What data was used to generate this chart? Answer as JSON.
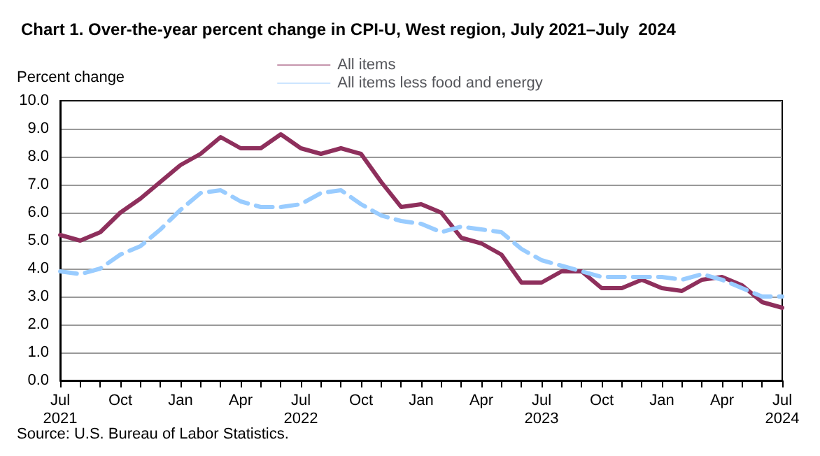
{
  "chart_data": {
    "type": "line",
    "title": "Chart 1. Over-the-year percent change in CPI-U, West region, July 2021–July  2024",
    "ylabel": "Percent change",
    "annotations": [
      "Source: U.S. Bureau of Labor Statistics."
    ],
    "categories": [
      "Jul\n2021",
      null,
      null,
      "Oct",
      null,
      null,
      "Jan",
      null,
      null,
      "Apr",
      null,
      null,
      "Jul\n2022",
      null,
      null,
      "Oct",
      null,
      null,
      "Jan",
      null,
      null,
      "Apr",
      null,
      null,
      "Jul\n2023",
      null,
      null,
      "Oct",
      null,
      null,
      "Jan",
      null,
      null,
      "Apr",
      null,
      null,
      "Jul\n2024"
    ],
    "series": [
      {
        "name": "All items",
        "color": "#8e2f5c",
        "line_style": "solid",
        "values": [
          5.2,
          5.0,
          5.3,
          6.0,
          6.5,
          7.1,
          7.7,
          8.1,
          8.7,
          8.3,
          8.3,
          8.8,
          8.3,
          8.1,
          8.3,
          8.1,
          7.1,
          6.2,
          6.3,
          6.0,
          5.1,
          4.9,
          4.5,
          3.5,
          3.5,
          3.9,
          3.9,
          3.3,
          3.3,
          3.6,
          3.3,
          3.2,
          3.6,
          3.7,
          3.4,
          2.8,
          2.6
        ]
      },
      {
        "name": "All items less food and energy",
        "color": "#99ccff",
        "line_style": "dashed",
        "values": [
          3.9,
          3.8,
          4.0,
          4.5,
          4.8,
          5.4,
          6.1,
          6.7,
          6.8,
          6.4,
          6.2,
          6.2,
          6.3,
          6.7,
          6.8,
          6.3,
          5.9,
          5.7,
          5.6,
          5.3,
          5.5,
          5.4,
          5.3,
          4.7,
          4.3,
          4.1,
          3.9,
          3.7,
          3.7,
          3.7,
          3.7,
          3.6,
          3.8,
          3.6,
          3.3,
          3.0,
          3.0
        ]
      }
    ],
    "ylim": [
      0,
      10
    ],
    "yticks": [
      {
        "value": 0,
        "label": "0.0"
      },
      {
        "value": 1,
        "label": "1.0"
      },
      {
        "value": 2,
        "label": "2.0"
      },
      {
        "value": 3,
        "label": "3.0"
      },
      {
        "value": 4,
        "label": "4.0"
      },
      {
        "value": 5,
        "label": "5.0"
      },
      {
        "value": 6,
        "label": "6.0"
      },
      {
        "value": 7,
        "label": "7.0"
      },
      {
        "value": 8,
        "label": "8.0"
      },
      {
        "value": 9,
        "label": "9.0"
      },
      {
        "value": 10,
        "label": "10.0"
      }
    ],
    "grid": "y",
    "legend": "top",
    "marker": "none"
  }
}
